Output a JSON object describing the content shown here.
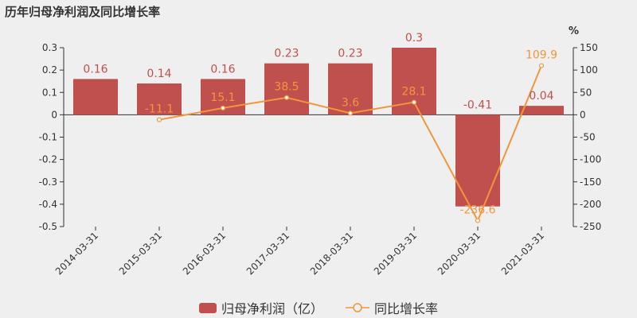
{
  "title": {
    "segments": [
      {
        "text": "历年",
        "bold": false
      },
      {
        "text": "归",
        "bold": true
      },
      {
        "text": "母",
        "bold": false
      },
      {
        "text": "净利",
        "bold": true
      },
      {
        "text": "润及同比增",
        "bold": false
      },
      {
        "text": "长",
        "bold": true
      },
      {
        "text": "率",
        "bold": false
      }
    ]
  },
  "colors": {
    "bar": "#c0504d",
    "line": "#f0963c",
    "axis": "#333333"
  },
  "chart_data": {
    "type": "bar",
    "categories": [
      "2014-03-31",
      "2015-03-31",
      "2016-03-31",
      "2017-03-31",
      "2018-03-31",
      "2019-03-31",
      "2020-03-31",
      "2021-03-31"
    ],
    "series": [
      {
        "name": "归母净利润（亿）",
        "type": "bar",
        "axis": "left",
        "values": [
          0.16,
          0.14,
          0.16,
          0.23,
          0.23,
          0.3,
          -0.41,
          0.04
        ],
        "labels": [
          "0.16",
          "0.14",
          "0.16",
          "0.23",
          "0.23",
          "0.3",
          "-0.41",
          "0.04"
        ]
      },
      {
        "name": "同比增长率",
        "type": "line",
        "axis": "right",
        "values": [
          null,
          -11.1,
          15.1,
          38.5,
          3.6,
          28.1,
          -236.6,
          109.9
        ],
        "labels": [
          "",
          "-11.1",
          "15.1",
          "38.5",
          "3.6",
          "28.1",
          "-236.6",
          "109.9"
        ]
      }
    ],
    "left_axis": {
      "ylim": [
        -0.5,
        0.3
      ],
      "ticks": [
        "0.3",
        "0.2",
        "0.1",
        "0",
        "-0.1",
        "-0.2",
        "-0.3",
        "-0.4",
        "-0.5"
      ]
    },
    "right_axis": {
      "unit": "%",
      "ylim": [
        -250,
        150
      ],
      "ticks": [
        "150",
        "100",
        "50",
        "0",
        "-50",
        "-100",
        "-150",
        "-200",
        "-250"
      ]
    },
    "grid": false,
    "legend_position": "bottom"
  }
}
